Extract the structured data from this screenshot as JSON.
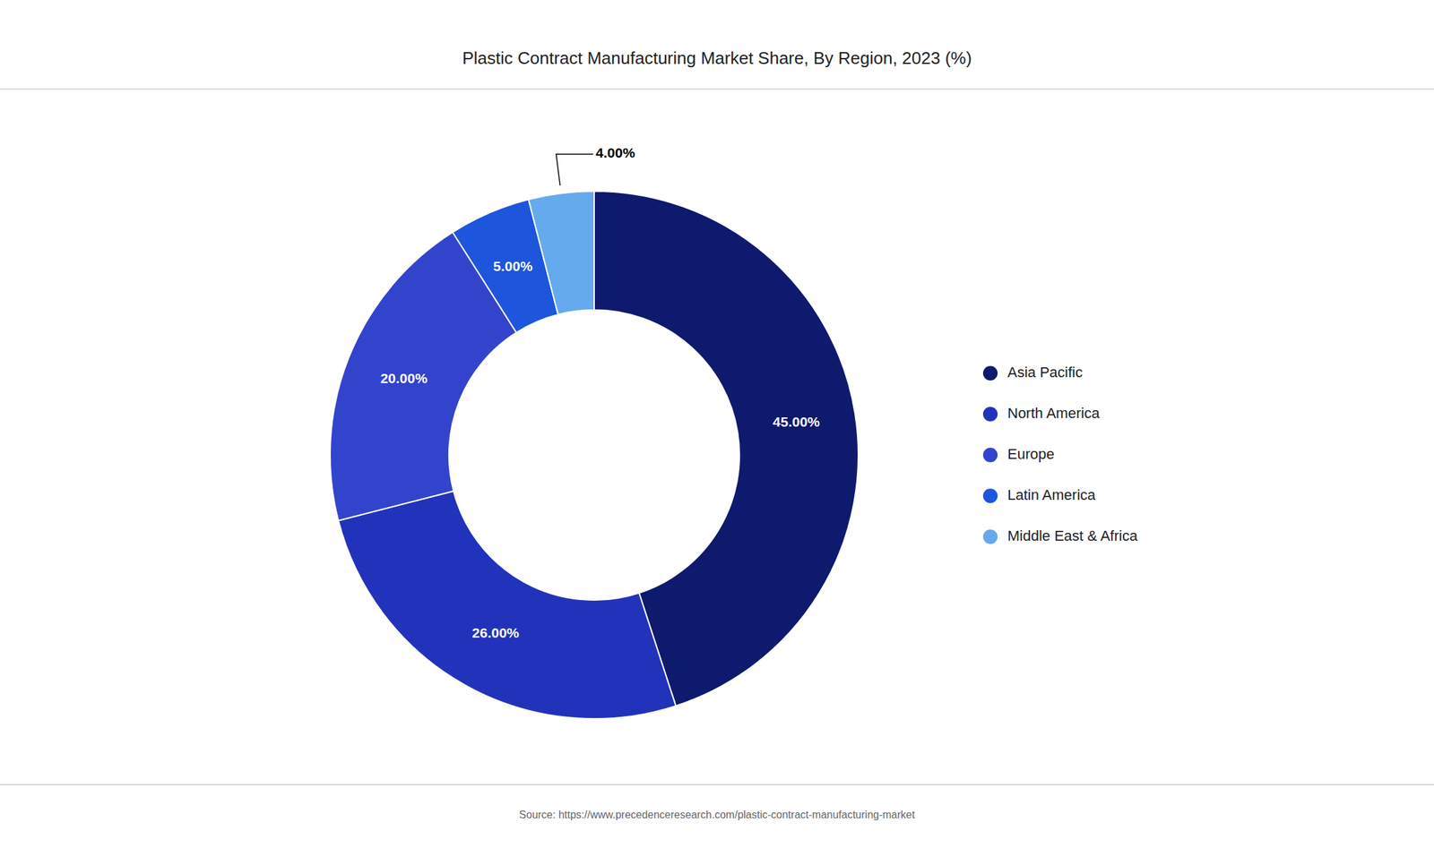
{
  "chart_data": {
    "type": "donut",
    "title": "Plastic Contract Manufacturing Market Share, By Region, 2023 (%)",
    "categories": [
      "Asia Pacific",
      "North America",
      "Europe",
      "Latin America",
      "Middle East & Africa"
    ],
    "values": [
      45.0,
      26.0,
      20.0,
      5.0,
      4.0
    ],
    "value_labels": [
      "45.00%",
      "26.00%",
      "20.00%",
      "5.00%",
      "4.00%"
    ],
    "colors": [
      "#0d1a6e",
      "#2233bb",
      "#3344cc",
      "#1e55dd",
      "#66aaee"
    ],
    "data_labels": true,
    "legend": "right",
    "annotations": [
      "Source: https://www.precedenceresearch.com/plastic-contract-manufacturing-market"
    ]
  }
}
